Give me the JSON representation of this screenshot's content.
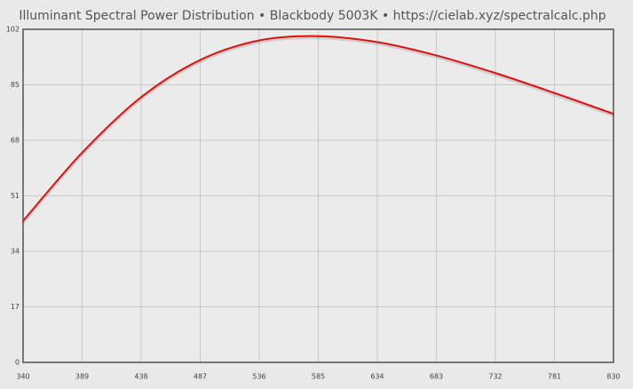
{
  "chart_data": {
    "type": "line",
    "title": "Illuminant Spectral Power Distribution  •  Blackbody 5003K  •  https://cielab.xyz/spectralcalc.php",
    "x": [
      340,
      389,
      438,
      487,
      536,
      585,
      634,
      683,
      732,
      781,
      830
    ],
    "series": [
      {
        "name": "Blackbody 5003K",
        "color": "#e01010",
        "values": [
          43.3,
          64.2,
          81.2,
          92.6,
          98.6,
          99.9,
          98.1,
          94.0,
          88.6,
          82.5,
          76.1
        ]
      }
    ],
    "xlim": [
      340,
      830
    ],
    "xticks": [
      340,
      389,
      438,
      487,
      536,
      585,
      634,
      683,
      732,
      781,
      830
    ],
    "ylim": [
      0,
      102
    ],
    "yticks": [
      0,
      17,
      34,
      51,
      68,
      85,
      102
    ],
    "grid": true
  }
}
